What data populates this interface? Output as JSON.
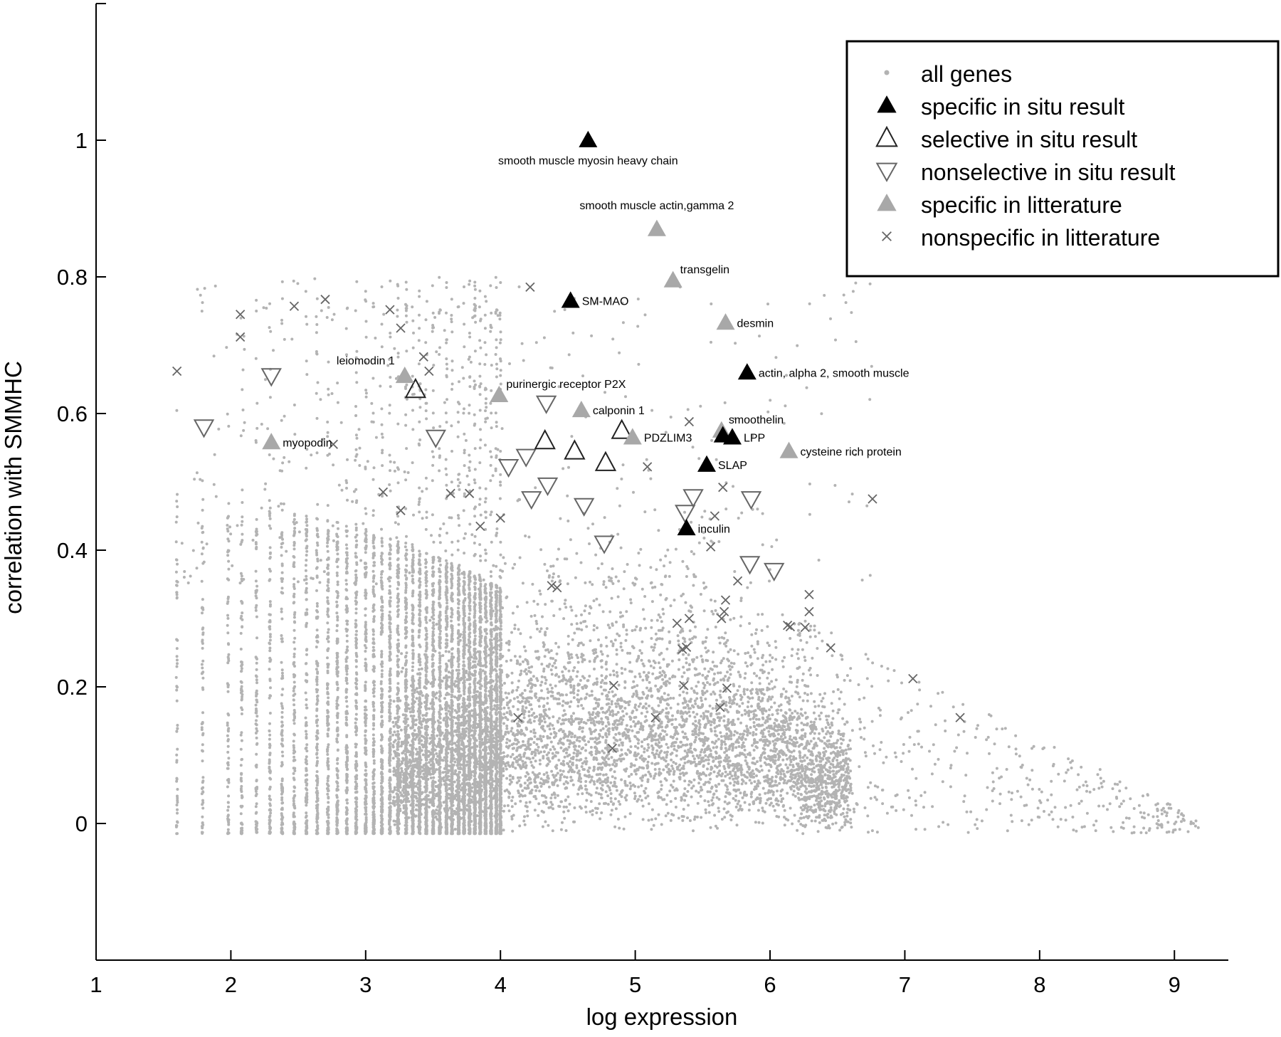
{
  "chart_data": {
    "type": "scatter",
    "title": "",
    "xlabel": "log expression",
    "ylabel": "correlation with SMMHC",
    "xlim": [
      1,
      9.4
    ],
    "ylim": [
      -0.2,
      1.2
    ],
    "x_ticks": [
      1,
      2,
      3,
      4,
      5,
      6,
      7,
      8,
      9
    ],
    "x_tick_labels": [
      "1",
      "2",
      "3",
      "4",
      "5",
      "6",
      "7",
      "8",
      "9"
    ],
    "y_ticks": [
      0,
      0.2,
      0.4,
      0.6,
      0.8,
      1
    ],
    "y_tick_labels": [
      "0",
      "0.2",
      "0.4",
      "0.6",
      "0.8",
      "1"
    ],
    "grid": false,
    "legend_placement": "top-right",
    "colors": {
      "all_genes": "#b3b3b3",
      "specific_situ": "#000000",
      "selective_situ": "#222222",
      "nonselective_situ": "#666666",
      "specific_lit": "#a8a8a8",
      "nonspecific_lit": "#666666"
    },
    "legend": [
      {
        "key": "all_genes",
        "label": "all genes",
        "marker": "dot"
      },
      {
        "key": "specific_situ",
        "label": "specific in situ result",
        "marker": "filled-triangle"
      },
      {
        "key": "selective_situ",
        "label": "selective in situ result",
        "marker": "open-triangle"
      },
      {
        "key": "nonselective_situ",
        "label": "nonselective in situ result",
        "marker": "open-down-triangle"
      },
      {
        "key": "specific_lit",
        "label": "specific in litterature",
        "marker": "gray-triangle"
      },
      {
        "key": "nonspecific_lit",
        "label": "nonspecific in litterature",
        "marker": "cross"
      }
    ],
    "series": [
      {
        "key": "specific_situ",
        "marker": "filled-triangle",
        "points": [
          {
            "x": 4.65,
            "y": 1.0,
            "label": "smooth muscle myosin heavy chain",
            "label_pos": "below"
          },
          {
            "x": 4.52,
            "y": 0.765,
            "label": "SM-MAO",
            "label_pos": "right"
          },
          {
            "x": 5.83,
            "y": 0.66,
            "label": "actin, alpha 2, smooth muscle",
            "label_pos": "right"
          },
          {
            "x": 5.65,
            "y": 0.568,
            "label": "",
            "label_pos": "right"
          },
          {
            "x": 5.72,
            "y": 0.565,
            "label": "LPP",
            "label_pos": "right"
          },
          {
            "x": 5.53,
            "y": 0.525,
            "label": "SLAP",
            "label_pos": "right"
          },
          {
            "x": 5.38,
            "y": 0.432,
            "label": "inculin",
            "label_pos": "right"
          }
        ]
      },
      {
        "key": "selective_situ",
        "marker": "open-triangle",
        "points": [
          {
            "x": 3.37,
            "y": 0.635
          },
          {
            "x": 4.33,
            "y": 0.56
          },
          {
            "x": 4.55,
            "y": 0.545
          },
          {
            "x": 4.78,
            "y": 0.528
          },
          {
            "x": 4.9,
            "y": 0.575
          }
        ]
      },
      {
        "key": "nonselective_situ",
        "marker": "open-down-triangle",
        "points": [
          {
            "x": 1.8,
            "y": 0.58
          },
          {
            "x": 2.3,
            "y": 0.655
          },
          {
            "x": 3.52,
            "y": 0.565
          },
          {
            "x": 4.06,
            "y": 0.522
          },
          {
            "x": 4.19,
            "y": 0.537
          },
          {
            "x": 4.23,
            "y": 0.475
          },
          {
            "x": 4.34,
            "y": 0.615
          },
          {
            "x": 4.35,
            "y": 0.495
          },
          {
            "x": 4.62,
            "y": 0.465
          },
          {
            "x": 4.77,
            "y": 0.41
          },
          {
            "x": 5.37,
            "y": 0.455
          },
          {
            "x": 5.43,
            "y": 0.478
          },
          {
            "x": 5.86,
            "y": 0.475
          },
          {
            "x": 5.85,
            "y": 0.38
          },
          {
            "x": 6.03,
            "y": 0.37
          }
        ]
      },
      {
        "key": "specific_lit",
        "marker": "gray-triangle",
        "points": [
          {
            "x": 5.16,
            "y": 0.87,
            "label": "smooth muscle actin,gamma 2",
            "label_pos": "above"
          },
          {
            "x": 5.28,
            "y": 0.795,
            "label": "transgelin",
            "label_pos": "upper-right"
          },
          {
            "x": 5.67,
            "y": 0.733,
            "label": "desmin",
            "label_pos": "right"
          },
          {
            "x": 3.29,
            "y": 0.655,
            "label": "leiomodin 1",
            "label_pos": "upper-left"
          },
          {
            "x": 3.99,
            "y": 0.627,
            "label": "purinergic receptor P2X",
            "label_pos": "upper-right"
          },
          {
            "x": 4.6,
            "y": 0.605,
            "label": "calponin 1",
            "label_pos": "right"
          },
          {
            "x": 4.98,
            "y": 0.565,
            "label": "PDZLIM3",
            "label_pos": "right"
          },
          {
            "x": 2.3,
            "y": 0.558,
            "label": "myopodin",
            "label_pos": "right"
          },
          {
            "x": 6.14,
            "y": 0.545,
            "label": "cysteine rich protein",
            "label_pos": "right"
          },
          {
            "x": 5.64,
            "y": 0.575,
            "label": "smoothelin",
            "label_pos": "upper-right"
          }
        ]
      },
      {
        "key": "nonspecific_lit",
        "marker": "cross",
        "points": [
          {
            "x": 1.6,
            "y": 0.662
          },
          {
            "x": 2.07,
            "y": 0.745
          },
          {
            "x": 2.07,
            "y": 0.712
          },
          {
            "x": 2.47,
            "y": 0.757
          },
          {
            "x": 2.7,
            "y": 0.767
          },
          {
            "x": 3.18,
            "y": 0.752
          },
          {
            "x": 3.26,
            "y": 0.725
          },
          {
            "x": 3.43,
            "y": 0.683
          },
          {
            "x": 3.47,
            "y": 0.662
          },
          {
            "x": 4.22,
            "y": 0.785
          },
          {
            "x": 2.76,
            "y": 0.555
          },
          {
            "x": 3.13,
            "y": 0.485
          },
          {
            "x": 3.26,
            "y": 0.458
          },
          {
            "x": 3.63,
            "y": 0.483
          },
          {
            "x": 3.77,
            "y": 0.483
          },
          {
            "x": 3.85,
            "y": 0.435
          },
          {
            "x": 4.0,
            "y": 0.447
          },
          {
            "x": 5.09,
            "y": 0.522
          },
          {
            "x": 5.4,
            "y": 0.588
          },
          {
            "x": 5.65,
            "y": 0.492
          },
          {
            "x": 5.59,
            "y": 0.45
          },
          {
            "x": 5.56,
            "y": 0.405
          },
          {
            "x": 6.76,
            "y": 0.475
          },
          {
            "x": 4.38,
            "y": 0.348
          },
          {
            "x": 4.42,
            "y": 0.345
          },
          {
            "x": 5.31,
            "y": 0.293
          },
          {
            "x": 5.4,
            "y": 0.3
          },
          {
            "x": 5.64,
            "y": 0.3
          },
          {
            "x": 5.66,
            "y": 0.31
          },
          {
            "x": 5.67,
            "y": 0.327
          },
          {
            "x": 5.76,
            "y": 0.355
          },
          {
            "x": 6.13,
            "y": 0.29
          },
          {
            "x": 6.15,
            "y": 0.288
          },
          {
            "x": 6.26,
            "y": 0.287
          },
          {
            "x": 6.29,
            "y": 0.335
          },
          {
            "x": 6.29,
            "y": 0.31
          },
          {
            "x": 6.45,
            "y": 0.257
          },
          {
            "x": 5.35,
            "y": 0.255
          },
          {
            "x": 5.38,
            "y": 0.258
          },
          {
            "x": 4.84,
            "y": 0.202
          },
          {
            "x": 5.36,
            "y": 0.202
          },
          {
            "x": 5.68,
            "y": 0.198
          },
          {
            "x": 5.63,
            "y": 0.17
          },
          {
            "x": 5.15,
            "y": 0.155
          },
          {
            "x": 4.13,
            "y": 0.155
          },
          {
            "x": 4.83,
            "y": 0.11
          },
          {
            "x": 7.06,
            "y": 0.212
          },
          {
            "x": 7.41,
            "y": 0.155
          }
        ]
      }
    ]
  }
}
